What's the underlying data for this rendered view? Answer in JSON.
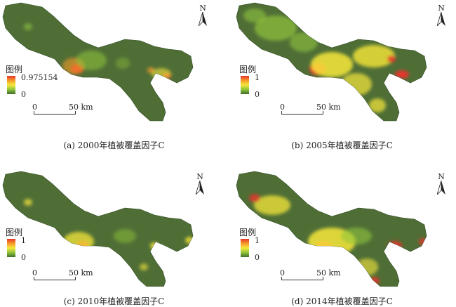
{
  "north_label": "N",
  "legend_title": "图例",
  "scale_zero": "0",
  "scale_label": "50 km",
  "colors": {
    "low": "#3e6b2a",
    "mid": "#f6e73a",
    "high": "#e8332a",
    "base": "#4f6e36"
  },
  "panels": [
    {
      "caption": "(a) 2000年植被覆盖因子C",
      "legend_max": "0.975154",
      "legend_min": "0"
    },
    {
      "caption": "(b) 2005年植被覆盖因子C",
      "legend_max": "1",
      "legend_min": "0"
    },
    {
      "caption": "(c) 2010年植被覆盖因子C",
      "legend_max": "1",
      "legend_min": "0"
    },
    {
      "caption": "(d) 2014年植被覆盖因子C",
      "legend_max": "1",
      "legend_min": "0"
    }
  ]
}
